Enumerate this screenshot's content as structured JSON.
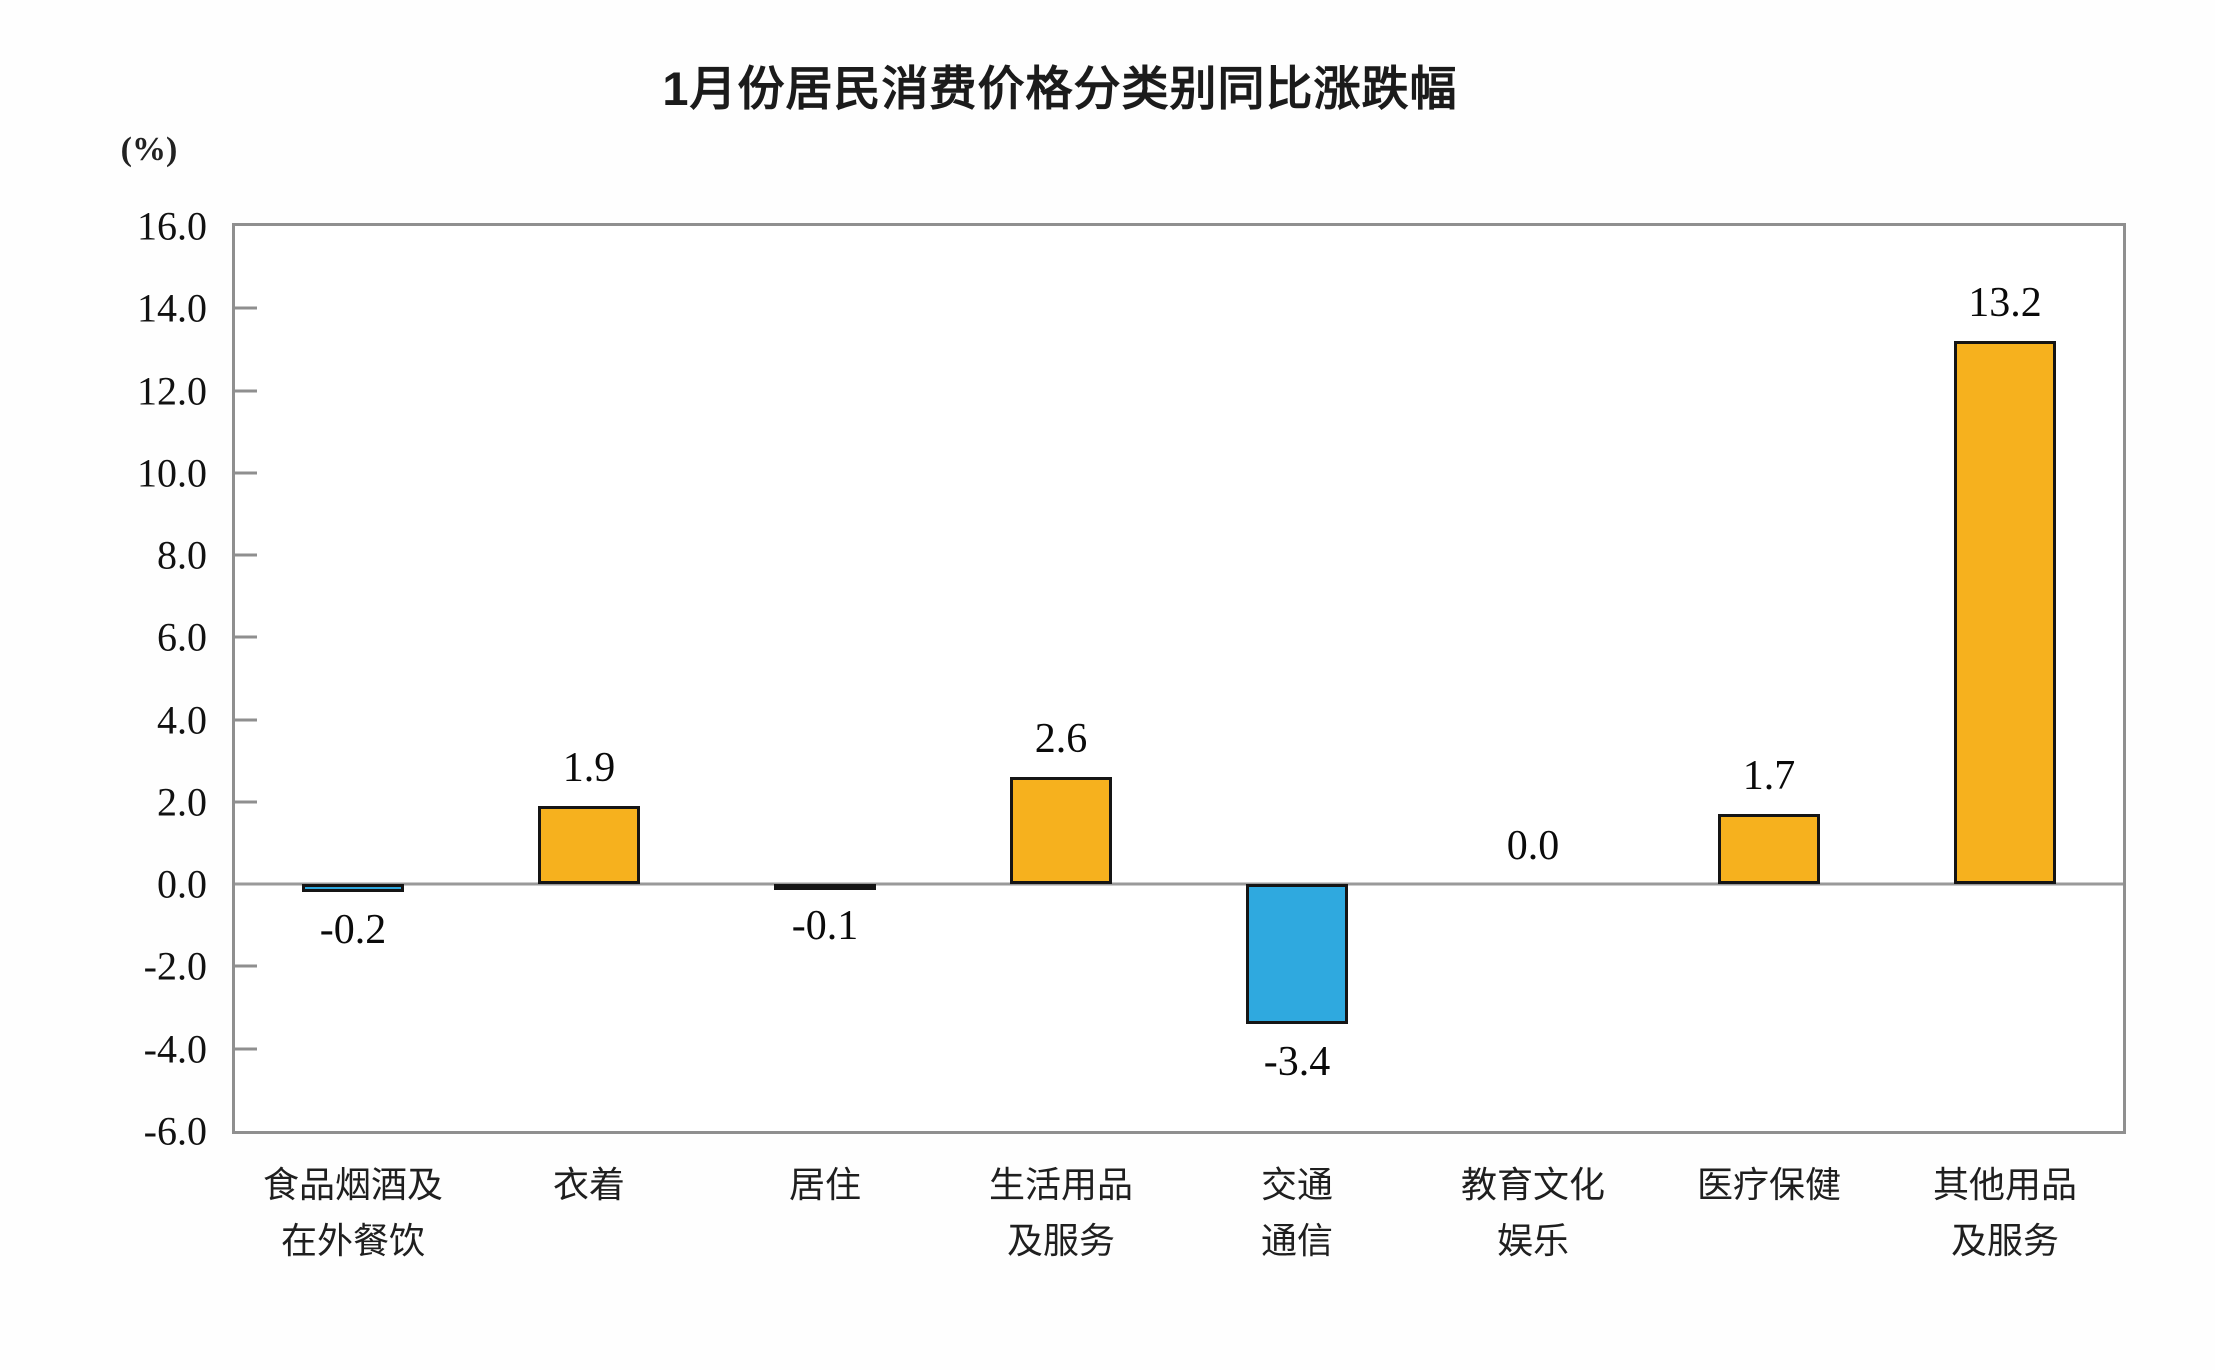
{
  "page_title": "1月份居民消费价格分类别同比涨跌幅",
  "chart_data": {
    "type": "bar",
    "title": "1月份居民消费价格分类别同比涨跌幅",
    "unit_label": "(%)",
    "categories": [
      [
        "食品烟酒及",
        "在外餐饮"
      ],
      [
        "衣着"
      ],
      [
        "居住"
      ],
      [
        "生活用品",
        "及服务"
      ],
      [
        "交通",
        "通信"
      ],
      [
        "教育文化",
        "娱乐"
      ],
      [
        "医疗保健"
      ],
      [
        "其他用品",
        "及服务"
      ]
    ],
    "values": [
      -0.2,
      1.9,
      -0.1,
      2.6,
      -3.4,
      0.0,
      1.7,
      13.2
    ],
    "value_labels": [
      "-0.2",
      "1.9",
      "-0.1",
      "2.6",
      "-3.4",
      "0.0",
      "1.7",
      "13.2"
    ],
    "ylim": [
      -6.0,
      16.0
    ],
    "ytick_step": 2.0,
    "yticks": [
      "16.0",
      "14.0",
      "12.0",
      "10.0",
      "8.0",
      "6.0",
      "4.0",
      "2.0",
      "0.0",
      "-2.0",
      "-4.0",
      "-6.0"
    ],
    "grid": false,
    "legend": null,
    "colors": {
      "positive_bar": "#F6B11E",
      "negative_bar": "#2FA9DF",
      "bar_border": "#151515",
      "axis": "#8f8f8f",
      "zero_line": "#9a9a9a",
      "text": "#111111"
    }
  }
}
